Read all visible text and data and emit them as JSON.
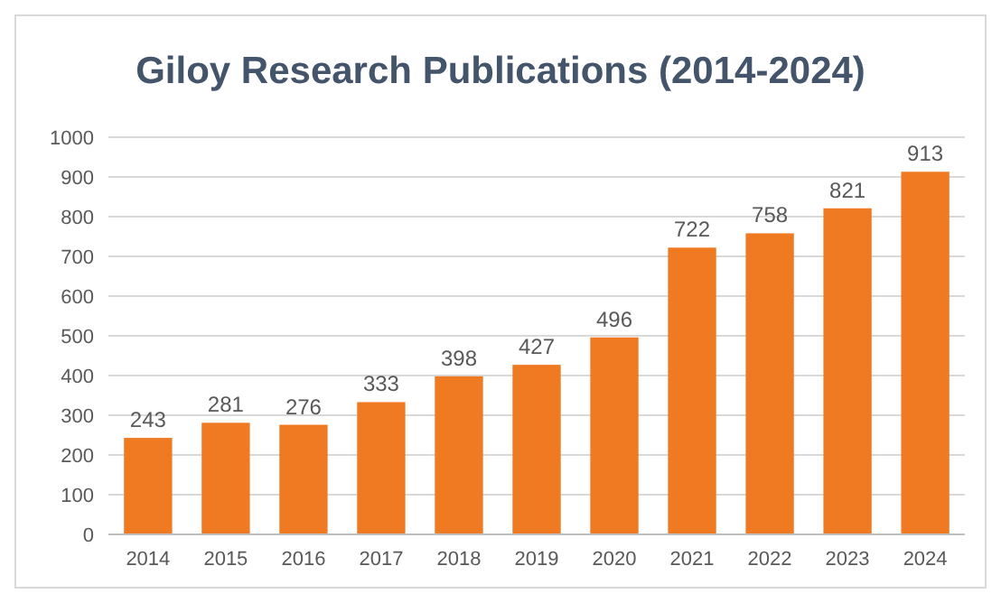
{
  "chart_data": {
    "type": "bar",
    "title": "Giloy Research Publications (2014-2024)",
    "categories": [
      "2014",
      "2015",
      "2016",
      "2017",
      "2018",
      "2019",
      "2020",
      "2021",
      "2022",
      "2023",
      "2024"
    ],
    "values": [
      243,
      281,
      276,
      333,
      398,
      427,
      496,
      722,
      758,
      821,
      913
    ],
    "color": "#f07a22",
    "ylim": [
      0,
      1000
    ],
    "yticks": [
      0,
      100,
      200,
      300,
      400,
      500,
      600,
      700,
      800,
      900,
      1000
    ],
    "grid": "y",
    "data_labels": true
  }
}
